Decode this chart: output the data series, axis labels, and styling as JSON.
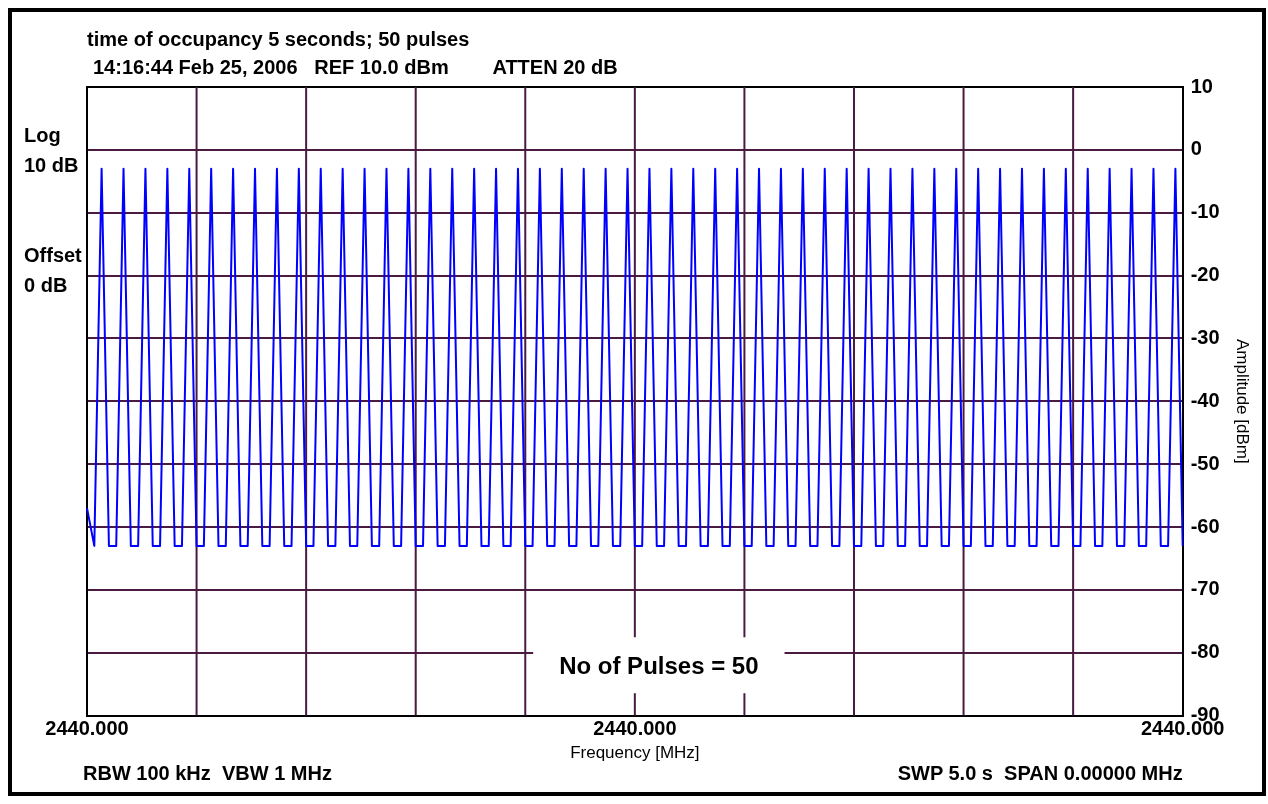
{
  "chart_data": {
    "type": "line",
    "title": "time of occupancy 5 seconds; 50 pulses",
    "subtitle": "14:16:44 Feb 25, 2006   REF 10.0 dBm        ATTEN 20 dB",
    "xlabel": "Frequency [MHz]",
    "ylabel": "Amplitude [dBm]",
    "annotations": [
      "Log 10 dB",
      "Offset 0 dB",
      "No of Pulses = 50",
      "RBW 100 kHz  VBW 1 MHz",
      "SWP 5.0 s  SPAN 0.00000 MHz"
    ],
    "categories": [
      "2440.000",
      null,
      null,
      null,
      null,
      null,
      null,
      null,
      null,
      null,
      null,
      null,
      null,
      null,
      null,
      null,
      null,
      null,
      null,
      null,
      null,
      null,
      null,
      null,
      null,
      null,
      null,
      null,
      null,
      null,
      null,
      null,
      null,
      null,
      null,
      null,
      null,
      null,
      null,
      null,
      null,
      null,
      null,
      null,
      null,
      null,
      null,
      null,
      null,
      null,
      null,
      null,
      null,
      null,
      null,
      null,
      null,
      null,
      null,
      null,
      null,
      null,
      null,
      null,
      null,
      null,
      null,
      null,
      null,
      null,
      null,
      null,
      null,
      null,
      null,
      "2440.000",
      null,
      null,
      null,
      null,
      null,
      null,
      null,
      null,
      null,
      null,
      null,
      null,
      null,
      null,
      null,
      null,
      null,
      null,
      null,
      null,
      null,
      null,
      null,
      null,
      null,
      null,
      null,
      null,
      null,
      null,
      null,
      null,
      null,
      null,
      null,
      null,
      null,
      null,
      null,
      null,
      null,
      null,
      null,
      null,
      null,
      null,
      null,
      null,
      null,
      null,
      null,
      null,
      null,
      null,
      null,
      null,
      null,
      null,
      null,
      null,
      null,
      null,
      null,
      null,
      null,
      null,
      null,
      null,
      null,
      null,
      null,
      null,
      null,
      null,
      "2440.000"
    ],
    "series": [
      {
        "color": "#0000ff",
        "values": [
          -57,
          -63,
          -3,
          -63,
          -63,
          -3,
          -63,
          -63,
          -3,
          -63,
          -63,
          -3,
          -63,
          -63,
          -3,
          -63,
          -63,
          -3,
          -63,
          -63,
          -3,
          -63,
          -63,
          -3,
          -63,
          -63,
          -3,
          -63,
          -63,
          -3,
          -63,
          -63,
          -3,
          -63,
          -63,
          -3,
          -63,
          -63,
          -3,
          -63,
          -63,
          -3,
          -63,
          -63,
          -3,
          -63,
          -63,
          -3,
          -63,
          -63,
          -3,
          -63,
          -63,
          -3,
          -63,
          -63,
          -3,
          -63,
          -63,
          -3,
          -63,
          -63,
          -3,
          -63,
          -63,
          -3,
          -63,
          -63,
          -3,
          -63,
          -63,
          -3,
          -63,
          -63,
          -3,
          -63,
          -63,
          -3,
          -63,
          -63,
          -3,
          -63,
          -63,
          -3,
          -63,
          -63,
          -3,
          -63,
          -63,
          -3,
          -63,
          -63,
          -3,
          -63,
          -63,
          -3,
          -63,
          -63,
          -3,
          -63,
          -63,
          -3,
          -63,
          -63,
          -3,
          -63,
          -63,
          -3,
          -63,
          -63,
          -3,
          -63,
          -63,
          -3,
          -63,
          -63,
          -3,
          -63,
          -63,
          -3,
          -63,
          -63,
          -3,
          -63,
          -63,
          -3,
          -63,
          -63,
          -3,
          -63,
          -63,
          -3,
          -63,
          -63,
          -3,
          -63,
          -63,
          -3,
          -63,
          -63,
          -3,
          -63,
          -63,
          -3,
          -63,
          -63,
          -3,
          -63,
          -63,
          -3,
          -63
        ]
      }
    ],
    "ylim": [
      -90,
      10
    ],
    "yticks": [
      -90,
      -80,
      -70,
      -60,
      -50,
      -40,
      -30,
      -20,
      -10,
      0,
      10
    ],
    "grid": true,
    "legend": false,
    "marker": "none",
    "line_style": "solid"
  }
}
